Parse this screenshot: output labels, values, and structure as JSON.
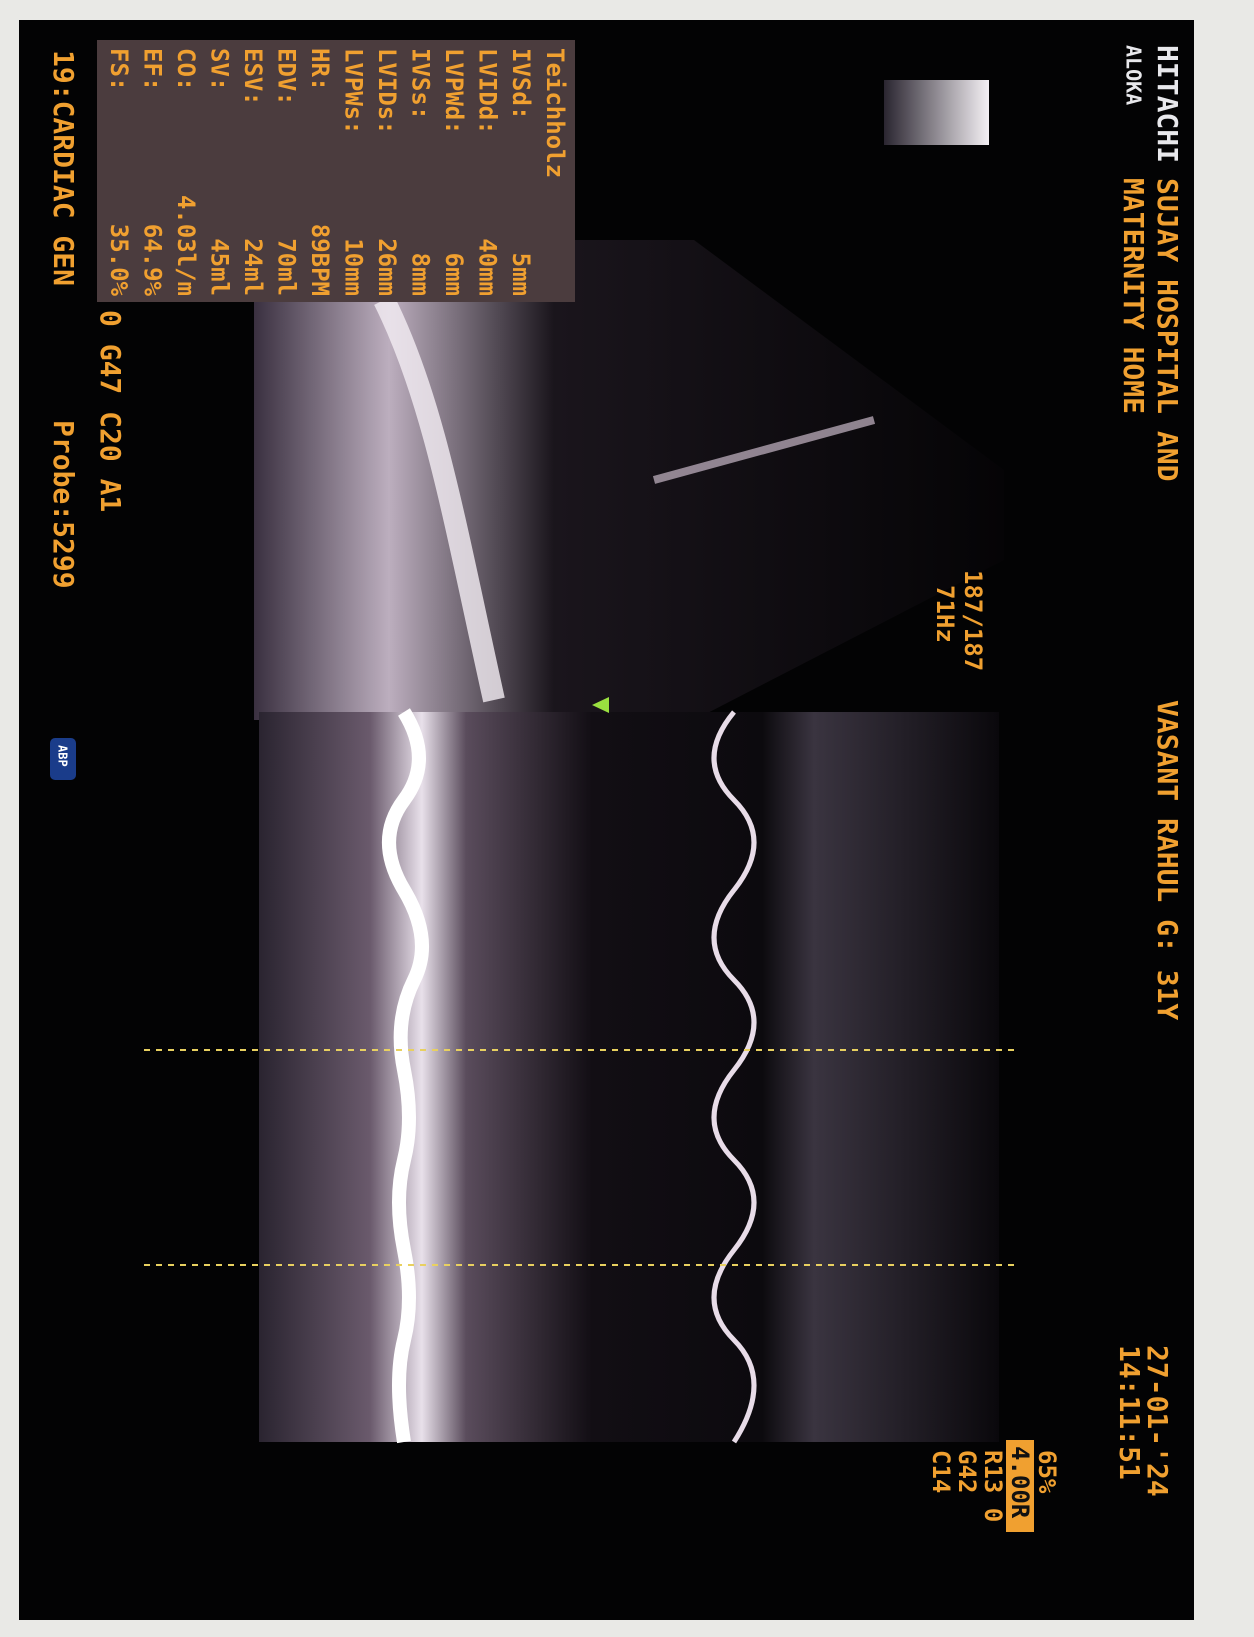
{
  "header": {
    "brand": "HITACHI",
    "sub_brand": "ALOKA",
    "hospital_line1": "SUJAY HOSPITAL AND",
    "hospital_line2": "MATERNITY HOME",
    "patient": "VASANT RAHUL G: 31Y",
    "date": "27-01-'24",
    "time": "14:11:51"
  },
  "settings": {
    "gain_percent": "65%",
    "depth": "4.00R",
    "r": "R13 0",
    "g": "G42",
    "c": "C14",
    "frames": "187/187",
    "rate": "71Hz"
  },
  "measurements": {
    "title": "Teichholz",
    "rows": [
      [
        "IVSd:",
        "5mm"
      ],
      [
        "LVIDd:",
        "40mm"
      ],
      [
        "LVPWd:",
        "6mm"
      ],
      [
        "IVSs:",
        "8mm"
      ],
      [
        "LVIDs:",
        "26mm"
      ],
      [
        "LVPWs:",
        "10mm"
      ],
      [
        "HR:",
        "89BPM"
      ],
      [
        "EDV:",
        "70ml"
      ],
      [
        "ESV:",
        "24ml"
      ],
      [
        "SV:",
        "45ml"
      ],
      [
        "CO:",
        "4.03l/m"
      ],
      [
        "EF:",
        "64.9%"
      ],
      [
        "FS:",
        "35.0%"
      ]
    ]
  },
  "status": {
    "preset": "19:CARDIAC GEN",
    "params": "0 G47 C20 A1",
    "probe": "Probe:5299",
    "badge": "ABP"
  }
}
